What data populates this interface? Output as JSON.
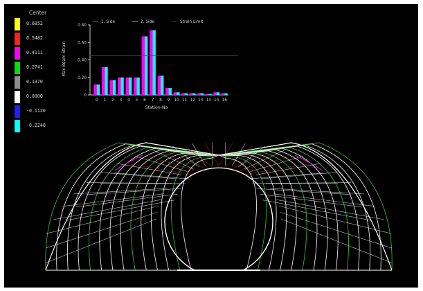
{
  "legend": {
    "title": "Center",
    "items": [
      {
        "color": "#ffff00",
        "value": "0.6852"
      },
      {
        "color": "#ff2020",
        "value": "0.5482"
      },
      {
        "color": "#ff00ff",
        "value": "0.4111"
      },
      {
        "color": "#00e000",
        "value": "0.2741"
      },
      {
        "color": "#8c8c8c",
        "value": "0.1370"
      },
      {
        "color": "#ffffff",
        "value": "0.0000"
      },
      {
        "color": "#1e1eff",
        "value": "-0.1120"
      },
      {
        "color": "#00ffff",
        "value": "-0.2240"
      }
    ]
  },
  "chart_data": {
    "type": "bar",
    "categories": [
      "0",
      "1",
      "2",
      "3",
      "4",
      "5",
      "6",
      "7",
      "8",
      "9",
      "10",
      "11",
      "12",
      "13",
      "14",
      "15",
      "16"
    ],
    "series": [
      {
        "name": "1. Side",
        "color": "#ff00ff",
        "values": [
          0.12,
          0.32,
          0.17,
          0.2,
          0.2,
          0.2,
          0.67,
          0.74,
          0.22,
          0.08,
          0.03,
          0.02,
          0.02,
          0.02,
          0.01,
          0.03,
          0.02
        ]
      },
      {
        "name": "2. Side",
        "color": "#00ffff",
        "values": [
          0.12,
          0.32,
          0.17,
          0.2,
          0.2,
          0.2,
          0.67,
          0.74,
          0.22,
          0.08,
          0.03,
          0.02,
          0.02,
          0.02,
          0.01,
          0.03,
          0.02
        ]
      }
    ],
    "reference_line": {
      "name": "Strain Limit",
      "value": 0.45,
      "color": "#c01010"
    },
    "xlabel": "Station-No",
    "ylabel": "Max Beam Strain",
    "ylim": [
      0,
      0.8
    ],
    "yticks": [
      "0",
      "0.20",
      "0.40",
      "0.60",
      "0.80"
    ],
    "grid": false,
    "legend_position": "top"
  },
  "mesh": {
    "colors": {
      "primary": "#ffffff",
      "accent_green": "#3cc43c",
      "accent_red": "#d02020",
      "accent_magenta": "#c020c0"
    }
  }
}
